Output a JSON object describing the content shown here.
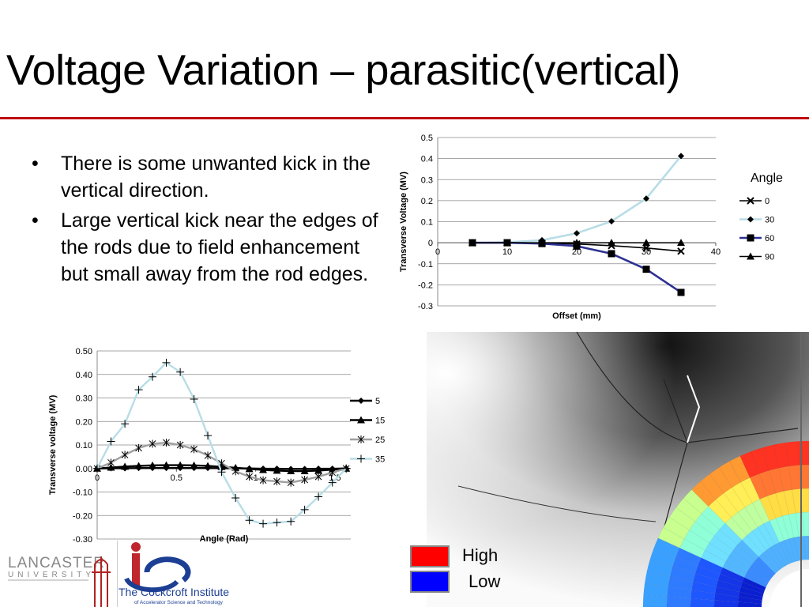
{
  "slide": {
    "title": "Voltage Variation – parasitic(vertical)",
    "bullets": [
      "There is some unwanted kick in the vertical direction.",
      "Large vertical kick near the edges of the rods due to field enhancement but small away from the rod edges."
    ],
    "bullet_glyph": "•",
    "accent_color": "#c00000"
  },
  "field_legend": {
    "high": "High",
    "low": "Low",
    "high_color": "#ff0000",
    "low_color": "#0000ff"
  },
  "logos": {
    "lancaster_top": "LANCASTER",
    "lancaster_bottom": "UNIVERSITY",
    "cockcroft_name": "The Cockcroft Institute",
    "cockcroft_sub": "of Accelerator Science and Technology"
  },
  "chart_data": [
    {
      "type": "line",
      "title": "",
      "xlabel": "Offset (mm)",
      "ylabel": "Transverse Voltage (MV)",
      "xlim": [
        0,
        40
      ],
      "ylim": [
        -0.3,
        0.5
      ],
      "x_ticks": [
        0,
        10,
        20,
        30,
        40
      ],
      "y_ticks": [
        -0.3,
        -0.2,
        -0.1,
        0,
        0.1,
        0.2,
        0.3,
        0.4,
        0.5
      ],
      "legend_title": "Angle",
      "legend_position": "right",
      "grid": "horizontal",
      "series": [
        {
          "name": "0",
          "marker": "x",
          "color": "#000000",
          "x": [
            5,
            10,
            15,
            20,
            25,
            30,
            35
          ],
          "y": [
            0,
            0,
            -0.002,
            -0.006,
            -0.014,
            -0.025,
            -0.04
          ]
        },
        {
          "name": "30",
          "marker": "diamond",
          "color": "#b8dde6",
          "x": [
            5,
            10,
            15,
            20,
            25,
            30,
            35
          ],
          "y": [
            0,
            0.002,
            0.012,
            0.045,
            0.102,
            0.21,
            0.412
          ]
        },
        {
          "name": "60",
          "marker": "square",
          "color": "#2e3192",
          "x": [
            5,
            10,
            15,
            20,
            25,
            30,
            35
          ],
          "y": [
            0,
            0,
            -0.004,
            -0.016,
            -0.052,
            -0.126,
            -0.236
          ]
        },
        {
          "name": "90",
          "marker": "triangle",
          "color": "#000000",
          "x": [
            5,
            10,
            15,
            20,
            25,
            30,
            35
          ],
          "y": [
            0,
            0,
            0,
            0,
            0,
            0,
            0
          ]
        }
      ]
    },
    {
      "type": "line",
      "title": "",
      "xlabel": "Angle (Rad)",
      "ylabel": "Transverse voltage (MV)",
      "xlim": [
        0,
        1.6
      ],
      "ylim": [
        -0.3,
        0.5
      ],
      "x_ticks": [
        0,
        0.5,
        1,
        1.5
      ],
      "x_tick_labels": [
        "0",
        "0.5",
        "1",
        "1.5"
      ],
      "y_ticks": [
        -0.3,
        -0.2,
        -0.1,
        0,
        0.1,
        0.2,
        0.3,
        0.4,
        0.5
      ],
      "y_tick_labels": [
        "-0.30",
        "-0.20",
        "-0.10",
        "0.00",
        "0.10",
        "0.20",
        "0.30",
        "0.40",
        "0.50"
      ],
      "legend_position": "right",
      "grid": "horizontal",
      "x": [
        0,
        0.087,
        0.175,
        0.262,
        0.349,
        0.436,
        0.524,
        0.611,
        0.698,
        0.785,
        0.873,
        0.96,
        1.047,
        1.134,
        1.222,
        1.309,
        1.396,
        1.484,
        1.571
      ],
      "series": [
        {
          "name": "5",
          "marker": "diamond",
          "color": "#000000",
          "y": [
            0,
            0.001,
            0.001,
            0.002,
            0.002,
            0.002,
            0.002,
            0.002,
            0.002,
            0.001,
            0.001,
            0,
            -0.001,
            -0.001,
            -0.002,
            -0.002,
            -0.001,
            -0.001,
            0
          ]
        },
        {
          "name": "15",
          "marker": "triangle",
          "color": "#000000",
          "y": [
            0,
            0.004,
            0.008,
            0.011,
            0.013,
            0.014,
            0.014,
            0.013,
            0.011,
            0.007,
            0.003,
            -0.002,
            -0.006,
            -0.009,
            -0.011,
            -0.011,
            -0.009,
            -0.005,
            0
          ]
        },
        {
          "name": "25",
          "marker": "star",
          "color": "#a0a0a0",
          "y": [
            0,
            0.025,
            0.058,
            0.087,
            0.105,
            0.11,
            0.1,
            0.082,
            0.055,
            0.022,
            -0.012,
            -0.035,
            -0.05,
            -0.055,
            -0.06,
            -0.048,
            -0.035,
            -0.017,
            0
          ]
        },
        {
          "name": "35",
          "marker": "plus",
          "color": "#b8dde6",
          "y": [
            0,
            0.115,
            0.19,
            0.335,
            0.39,
            0.45,
            0.41,
            0.295,
            0.14,
            -0.015,
            -0.125,
            -0.22,
            -0.235,
            -0.23,
            -0.225,
            -0.175,
            -0.12,
            -0.06,
            0
          ]
        }
      ]
    }
  ]
}
